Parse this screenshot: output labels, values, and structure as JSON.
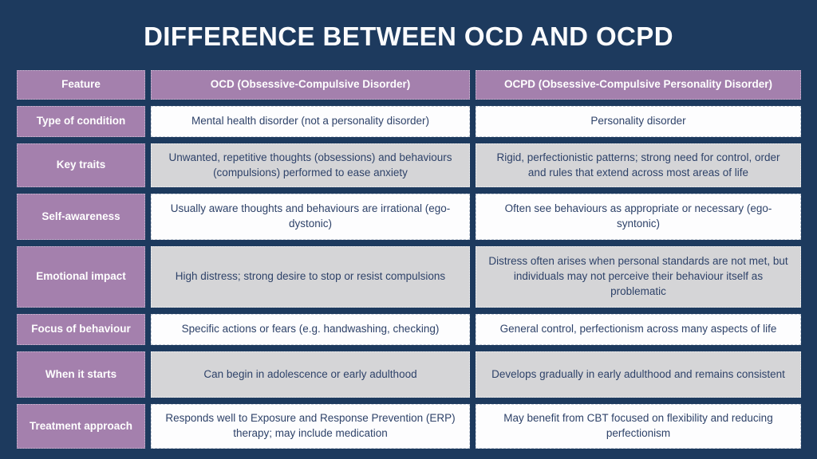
{
  "chart_data": {
    "type": "table",
    "title": "DIFFERENCE BETWEEN OCD AND OCPD",
    "columns": [
      "Feature",
      "OCD (Obsessive-Compulsive Disorder)",
      "OCPD (Obsessive-Compulsive Personality Disorder)"
    ],
    "rows": [
      [
        "Type of condition",
        "Mental health disorder (not a personality disorder)",
        "Personality disorder"
      ],
      [
        "Key traits",
        "Unwanted, repetitive thoughts (obsessions) and behaviours (compulsions) performed to ease anxiety",
        "Rigid, perfectionistic patterns; strong need for control, order and rules that extend across most areas of life"
      ],
      [
        "Self-awareness",
        "Usually aware thoughts and behaviours are irrational (ego-dystonic)",
        "Often see behaviours as appropriate or necessary (ego-syntonic)"
      ],
      [
        "Emotional impact",
        "High distress; strong desire to stop or resist compulsions",
        "Distress often arises when personal standards are not met, but individuals may not perceive their behaviour itself as problematic"
      ],
      [
        "Focus of behaviour",
        "Specific actions or fears (e.g. handwashing, checking)",
        "General control, perfectionism across many aspects of life"
      ],
      [
        "When it starts",
        "Can begin in adolescence or early adulthood",
        "Develops gradually in early adulthood and remains consistent"
      ],
      [
        "Treatment approach",
        "Responds well to Exposure and Response Prevention (ERP) therapy; may include medication",
        "May benefit from CBT focused on flexibility and reducing perfectionism"
      ]
    ],
    "layout": {
      "legend": "none",
      "grid": "off",
      "header_style": "purple band",
      "row_striping": "white / light-gray alternating"
    }
  },
  "style": {
    "background_color": "#1d3a5e",
    "accent_purple": "#a480ad",
    "row_light": "#fdfdfe",
    "row_gray": "#d5d5d7",
    "cell_text_color": "#2e4269",
    "title_color": "#fbfcfe"
  }
}
